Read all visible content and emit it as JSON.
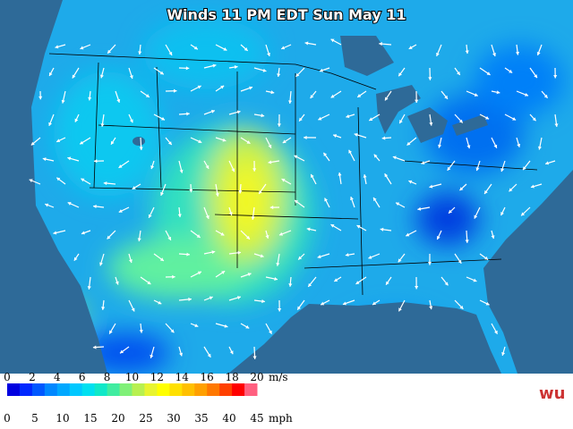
{
  "title": "Winds 11 PM EDT Sun May 11",
  "legend": {
    "colors": [
      "#0000e0",
      "#0028ff",
      "#0058ff",
      "#0088ff",
      "#00a8ff",
      "#00c8ff",
      "#00e0f0",
      "#10e8c8",
      "#40eca0",
      "#80f078",
      "#b8f050",
      "#e8f430",
      "#ffff00",
      "#ffe000",
      "#ffc000",
      "#ffa000",
      "#ff7800",
      "#ff4000",
      "#ff0000",
      "#ff6080"
    ],
    "ms_ticks": [
      "0",
      "2",
      "4",
      "6",
      "8",
      "10",
      "12",
      "14",
      "16",
      "18",
      "20"
    ],
    "ms_unit": "m/s",
    "mph_ticks": [
      "0",
      "5",
      "10",
      "15",
      "20",
      "25",
      "30",
      "35",
      "40",
      "45"
    ],
    "mph_unit": "mph"
  },
  "logo": "wu"
}
